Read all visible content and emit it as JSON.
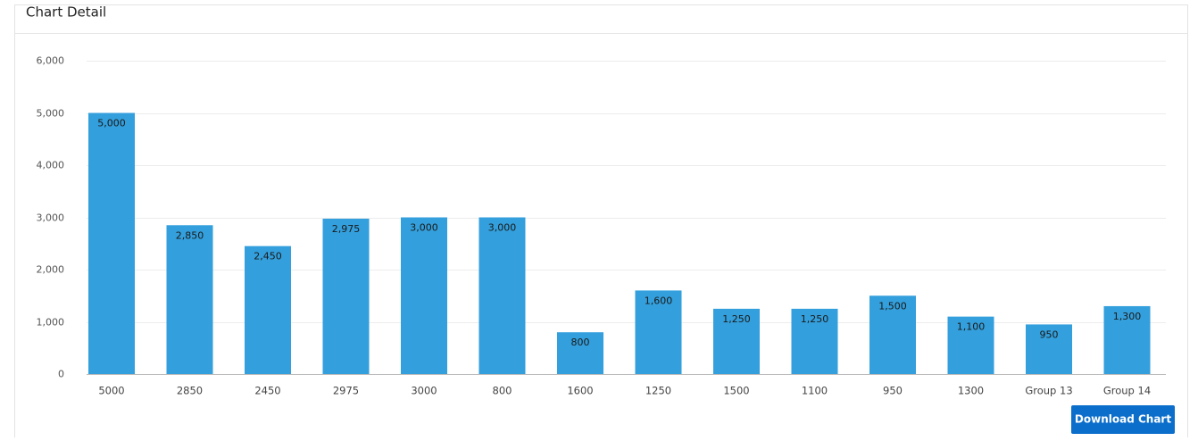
{
  "panel": {
    "title": "Chart Detail"
  },
  "button": {
    "label": "Download Chart"
  },
  "chart_data": {
    "type": "bar",
    "categories": [
      "5000",
      "2850",
      "2450",
      "2975",
      "3000",
      "800",
      "1600",
      "1250",
      "1500",
      "1100",
      "950",
      "1300",
      "Group 13",
      "Group 14"
    ],
    "values": [
      5000,
      2850,
      2450,
      2975,
      3000,
      3000,
      800,
      1600,
      1250,
      1250,
      1500,
      1100,
      950,
      1300
    ],
    "value_labels": [
      "5,000",
      "2,850",
      "2,450",
      "2,975",
      "3,000",
      "3,000",
      "800",
      "1,600",
      "1,250",
      "1,250",
      "1,500",
      "1,100",
      "950",
      "1,300"
    ],
    "color": "#339fdc",
    "ylim": [
      0,
      6000
    ],
    "yticks": [
      0,
      {
        "value": 1000,
        "label": "1,000"
      },
      {
        "value": 2000,
        "label": "2,000"
      },
      {
        "value": 3000,
        "label": "3,000"
      },
      {
        "value": 4000,
        "label": "4,000"
      },
      {
        "value": 5000,
        "label": "5,000"
      },
      {
        "value": 6000,
        "label": "6,000"
      }
    ],
    "grid": true
  }
}
